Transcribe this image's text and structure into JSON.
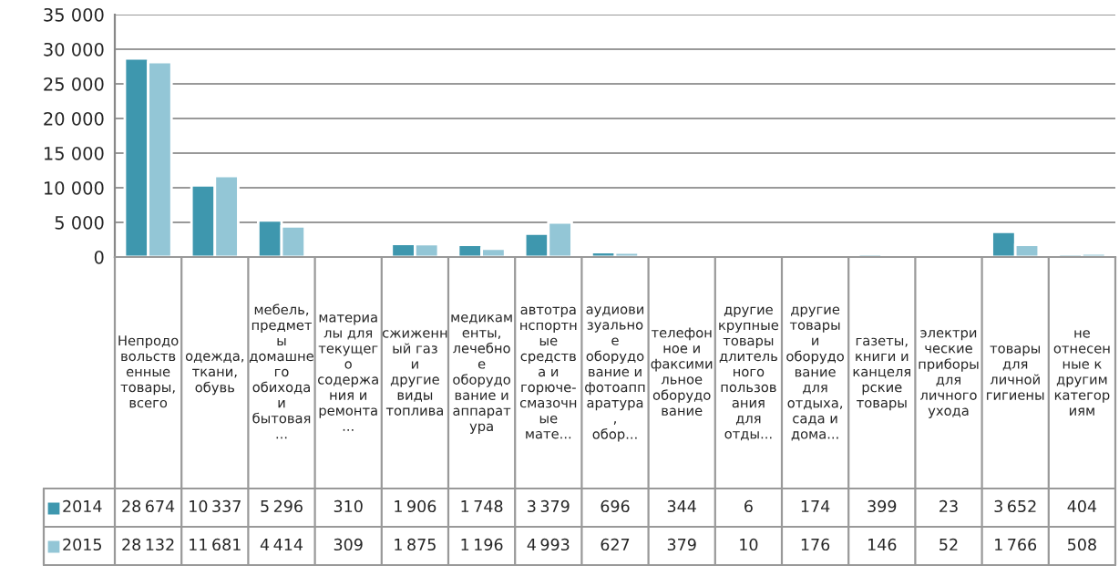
{
  "chart_data": {
    "type": "bar",
    "categories": [
      "Непродовольственные товары, всего",
      "одежда, ткани, обувь",
      "мебель, предметы домашнего обихода и бытовая...",
      "материалы для текущего содержания и ремонта...",
      "сжиженный газ и другие виды топлива",
      "медикаменты, лечебное оборудование и аппаратура",
      "автотранспортные средства и горюче-смазочные мате...",
      "аудиовизуальное оборудование и фотоаппаратура, обор...",
      "телефонное и факсимильное оборудование",
      "другие крупные товары длительного пользования для отды...",
      "другие товары и оборудование для отдыха, сада и дома...",
      "газеты, книги и канцелярские товары",
      "электрические приборы для личного ухода",
      "товары для личной гигиены",
      "не отнесенные к другим категориям"
    ],
    "series": [
      {
        "name": "2014",
        "color": "#3e97ae",
        "values": [
          28674,
          10337,
          5296,
          310,
          1906,
          1748,
          3379,
          696,
          344,
          6,
          174,
          399,
          23,
          3652,
          404
        ]
      },
      {
        "name": "2015",
        "color": "#93c6d6",
        "values": [
          28132,
          11681,
          4414,
          309,
          1875,
          1196,
          4993,
          627,
          379,
          10,
          176,
          146,
          52,
          1766,
          508
        ]
      }
    ],
    "ylim": [
      0,
      35000
    ],
    "yticks": [
      0,
      {
        "value": 5000,
        "label": "5 000"
      },
      {
        "value": 10000,
        "label": "10 000"
      },
      {
        "value": 15000,
        "label": "15 000"
      },
      {
        "value": 20000,
        "label": "20 000"
      },
      {
        "value": 25000,
        "label": "25 000"
      },
      {
        "value": 30000,
        "label": "30 000"
      },
      {
        "value": 35000,
        "label": "35 000"
      }
    ],
    "grid": "y",
    "legend": "bottom",
    "data_labels": true
  }
}
